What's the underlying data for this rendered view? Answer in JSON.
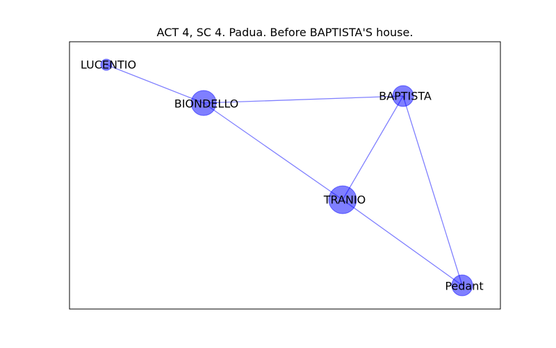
{
  "title": "ACT 4, SC 4. Padua. Before BAPTISTA'S house.",
  "colors": {
    "node_fill": "#0000ff",
    "node_opacity": 0.5,
    "edge": "#0000ff",
    "edge_opacity": 0.5,
    "frame": "#000000",
    "background": "#ffffff"
  },
  "nodes": [
    {
      "id": "LUCENTIO",
      "label": "LUCENTIO",
      "weight": 1
    },
    {
      "id": "BIONDELLO",
      "label": "BIONDELLO",
      "weight": 3
    },
    {
      "id": "BAPTISTA",
      "label": "BAPTISTA",
      "weight": 2
    },
    {
      "id": "TRANIO",
      "label": "TRANIO",
      "weight": 4
    },
    {
      "id": "Pedant",
      "label": "Pedant",
      "weight": 2
    }
  ],
  "edges": [
    {
      "source": "LUCENTIO",
      "target": "BIONDELLO"
    },
    {
      "source": "BIONDELLO",
      "target": "BAPTISTA"
    },
    {
      "source": "BIONDELLO",
      "target": "TRANIO"
    },
    {
      "source": "BAPTISTA",
      "target": "TRANIO"
    },
    {
      "source": "BAPTISTA",
      "target": "Pedant"
    },
    {
      "source": "TRANIO",
      "target": "Pedant"
    }
  ]
}
